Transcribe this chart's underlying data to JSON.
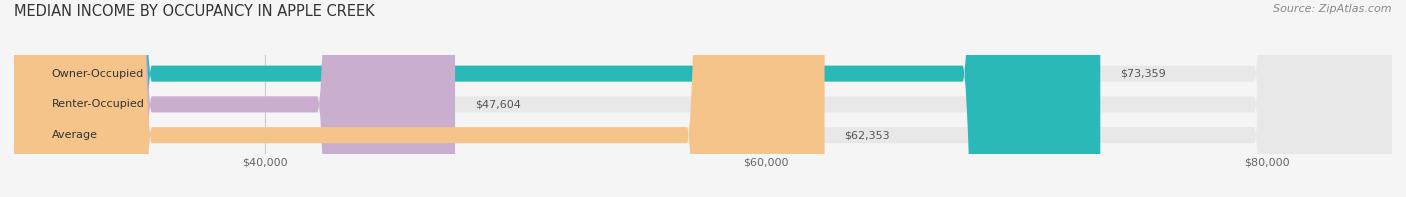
{
  "title": "MEDIAN INCOME BY OCCUPANCY IN APPLE CREEK",
  "source": "Source: ZipAtlas.com",
  "categories": [
    "Owner-Occupied",
    "Renter-Occupied",
    "Average"
  ],
  "values": [
    73359,
    47604,
    62353
  ],
  "bar_colors": [
    "#2ab8b8",
    "#c9aed0",
    "#f5c48a"
  ],
  "bar_bg_color": "#e8e8e8",
  "value_labels": [
    "$73,359",
    "$47,604",
    "$62,353"
  ],
  "xlim": [
    30000,
    85000
  ],
  "xticks": [
    40000,
    60000,
    80000
  ],
  "xtick_labels": [
    "$40,000",
    "$60,000",
    "$80,000"
  ],
  "title_fontsize": 10.5,
  "source_fontsize": 8,
  "label_fontsize": 8,
  "value_fontsize": 8,
  "bar_height": 0.52,
  "figsize": [
    14.06,
    1.97
  ],
  "dpi": 100,
  "bg_color": "#f5f5f5"
}
